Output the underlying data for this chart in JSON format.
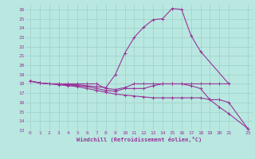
{
  "xlabel": "Windchill (Refroidissement éolien,°C)",
  "bg_color": "#b8e8e0",
  "grid_color": "#9ecfca",
  "line_color": "#993399",
  "ylim": [
    13,
    26.5
  ],
  "xlim": [
    -0.5,
    23.5
  ],
  "yticks": [
    13,
    14,
    15,
    16,
    17,
    18,
    19,
    20,
    21,
    22,
    23,
    24,
    25,
    26
  ],
  "xticks": [
    0,
    1,
    2,
    3,
    4,
    5,
    6,
    7,
    8,
    9,
    10,
    11,
    12,
    13,
    14,
    15,
    16,
    17,
    18,
    19,
    20,
    21,
    23
  ],
  "lines": [
    {
      "x": [
        0,
        1,
        2,
        3,
        4,
        5,
        6,
        7,
        8,
        9,
        10,
        11,
        12,
        13,
        14,
        15,
        16,
        17,
        18,
        21
      ],
      "y": [
        18.3,
        18.1,
        18.0,
        18.0,
        17.9,
        17.9,
        17.8,
        17.7,
        17.6,
        19.0,
        21.3,
        23.0,
        24.1,
        24.9,
        25.0,
        26.1,
        26.0,
        23.2,
        21.5,
        18.0
      ]
    },
    {
      "x": [
        0,
        1,
        2,
        3,
        4,
        5,
        6,
        7,
        8,
        9,
        10,
        11,
        12,
        13,
        14,
        15,
        16,
        17,
        18,
        19,
        20,
        21,
        23
      ],
      "y": [
        18.3,
        18.1,
        18.0,
        18.0,
        17.9,
        17.8,
        17.7,
        17.5,
        17.3,
        17.2,
        17.5,
        17.5,
        17.5,
        17.8,
        18.0,
        18.0,
        18.0,
        17.8,
        17.5,
        16.3,
        15.5,
        14.8,
        13.2
      ]
    },
    {
      "x": [
        0,
        1,
        2,
        3,
        4,
        5,
        6,
        7,
        8,
        9,
        10,
        11,
        12,
        13,
        14,
        15,
        16,
        17,
        18,
        19,
        20,
        21,
        23
      ],
      "y": [
        18.3,
        18.1,
        18.0,
        17.9,
        17.8,
        17.7,
        17.5,
        17.3,
        17.1,
        16.9,
        16.8,
        16.7,
        16.6,
        16.5,
        16.5,
        16.5,
        16.5,
        16.5,
        16.5,
        16.3,
        16.3,
        16.0,
        13.2
      ]
    },
    {
      "x": [
        0,
        1,
        2,
        3,
        4,
        5,
        6,
        7,
        8,
        9,
        10,
        11,
        12,
        13,
        14,
        15,
        16,
        17,
        18,
        19,
        20,
        21
      ],
      "y": [
        18.3,
        18.1,
        18.0,
        18.0,
        18.0,
        18.0,
        18.0,
        18.0,
        17.5,
        17.4,
        17.6,
        18.0,
        18.0,
        18.0,
        18.0,
        18.0,
        18.0,
        18.0,
        18.0,
        18.0,
        18.0,
        18.0
      ]
    }
  ],
  "marker": "+",
  "markersize": 3,
  "linewidth": 0.8
}
